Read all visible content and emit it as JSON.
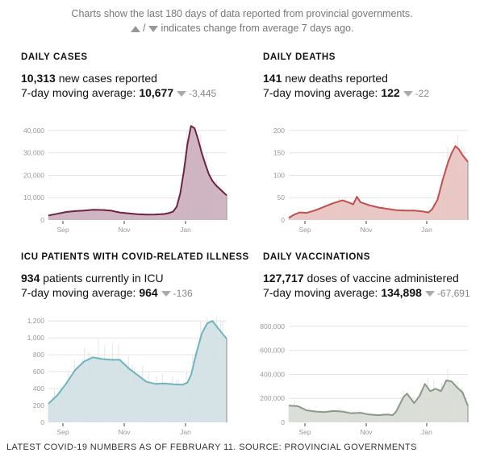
{
  "intro": {
    "line1": "Charts show the last 180 days of data reported from provincial governments.",
    "line2_sep": "/",
    "line2_text": "indicates change from average 7 days ago."
  },
  "footer": "LATEST COVID-19 NUMBERS AS OF FEBRUARY 11. SOURCE: PROVINCIAL GOVERNMENTS",
  "panels": [
    {
      "title": "DAILY CASES",
      "value": "10,313",
      "value_text": "new cases reported",
      "avg_label": "7-day moving average:",
      "avg_value": "10,677",
      "change_direction": "down",
      "change": "-3,445",
      "color_line": "#6e2341",
      "color_fill": "#c9aab8"
    },
    {
      "title": "DAILY DEATHS",
      "value": "141",
      "value_text": "new deaths reported",
      "avg_label": "7-day moving average:",
      "avg_value": "122",
      "change_direction": "down",
      "change": "-22",
      "color_line": "#c0504d",
      "color_fill": "#e6c0bd"
    },
    {
      "title": "ICU PATIENTS WITH COVID-RELATED ILLNESS",
      "value": "934",
      "value_text": "patients currently in ICU",
      "avg_label": "7-day moving average:",
      "avg_value": "964",
      "change_direction": "down",
      "change": "-136",
      "color_line": "#6fb3bf",
      "color_fill": "#cfdfe3"
    },
    {
      "title": "DAILY VACCINATIONS",
      "value": "127,717",
      "value_text": "doses of vaccine administered",
      "avg_label": "7-day moving average:",
      "avg_value": "134,898",
      "change_direction": "down",
      "change": "-67,691",
      "color_line": "#8a9a86",
      "color_fill": "#d6d9d2"
    }
  ],
  "chart_data": [
    {
      "type": "area",
      "title": "DAILY CASES",
      "xlabel": "",
      "ylabel": "",
      "x_ticks": [
        "Sep",
        "Nov",
        "Jan"
      ],
      "y_ticks": [
        0,
        10000,
        20000,
        30000,
        40000
      ],
      "y_tick_labels": [
        "0",
        "10,000",
        "20,000",
        "30,000",
        "40,000"
      ],
      "ylim": [
        0,
        45000
      ],
      "grid": true,
      "series": [
        {
          "name": "7-day moving average",
          "x_frac": [
            0,
            0.05,
            0.1,
            0.15,
            0.2,
            0.25,
            0.3,
            0.35,
            0.4,
            0.45,
            0.5,
            0.55,
            0.6,
            0.65,
            0.68,
            0.7,
            0.72,
            0.74,
            0.76,
            0.78,
            0.8,
            0.82,
            0.84,
            0.86,
            0.88,
            0.9,
            0.92,
            0.94,
            0.96,
            0.98,
            1.0
          ],
          "values": [
            2000,
            2800,
            3600,
            4000,
            4200,
            4600,
            4500,
            4200,
            3400,
            3000,
            2600,
            2400,
            2500,
            2700,
            3200,
            3800,
            6000,
            12000,
            22000,
            34000,
            42000,
            41000,
            36000,
            30000,
            25000,
            20500,
            17500,
            15500,
            14000,
            12500,
            11000
          ]
        }
      ]
    },
    {
      "type": "area",
      "title": "DAILY DEATHS",
      "xlabel": "",
      "ylabel": "",
      "x_ticks": [
        "Sep",
        "Nov",
        "Jan"
      ],
      "y_ticks": [
        0,
        50,
        100,
        150,
        200
      ],
      "y_tick_labels": [
        "0",
        "50",
        "100",
        "150",
        "200"
      ],
      "ylim": [
        0,
        225
      ],
      "grid": true,
      "series": [
        {
          "name": "7-day moving average",
          "x_frac": [
            0,
            0.03,
            0.06,
            0.1,
            0.15,
            0.2,
            0.25,
            0.3,
            0.33,
            0.36,
            0.38,
            0.4,
            0.45,
            0.5,
            0.55,
            0.6,
            0.65,
            0.7,
            0.75,
            0.78,
            0.8,
            0.83,
            0.86,
            0.89,
            0.91,
            0.93,
            0.95,
            0.97,
            1.0
          ],
          "values": [
            5,
            12,
            17,
            16,
            22,
            30,
            38,
            44,
            40,
            35,
            52,
            40,
            33,
            28,
            25,
            22,
            21,
            21,
            19,
            17,
            24,
            45,
            90,
            130,
            150,
            165,
            158,
            145,
            130
          ]
        }
      ]
    },
    {
      "type": "area",
      "title": "ICU PATIENTS WITH COVID-RELATED ILLNESS",
      "xlabel": "",
      "ylabel": "",
      "x_ticks": [
        "Sep",
        "Nov",
        "Jan"
      ],
      "y_ticks": [
        0,
        200,
        400,
        600,
        800,
        1000,
        1200
      ],
      "y_tick_labels": [
        "0",
        "200",
        "400",
        "600",
        "800",
        "1,000",
        "1,200"
      ],
      "ylim": [
        0,
        1250
      ],
      "grid": true,
      "series": [
        {
          "name": "7-day moving average",
          "x_frac": [
            0,
            0.05,
            0.1,
            0.15,
            0.2,
            0.25,
            0.3,
            0.35,
            0.4,
            0.45,
            0.5,
            0.55,
            0.6,
            0.65,
            0.7,
            0.75,
            0.78,
            0.8,
            0.83,
            0.86,
            0.89,
            0.92,
            0.95,
            0.98,
            1.0
          ],
          "values": [
            220,
            320,
            460,
            620,
            720,
            770,
            750,
            740,
            740,
            640,
            560,
            480,
            455,
            460,
            450,
            445,
            470,
            560,
            820,
            1050,
            1170,
            1200,
            1120,
            1040,
            990
          ]
        }
      ]
    },
    {
      "type": "area",
      "title": "DAILY VACCINATIONS",
      "xlabel": "",
      "ylabel": "",
      "x_ticks": [
        "Sep",
        "Nov",
        "Jan"
      ],
      "y_ticks": [
        0,
        200000,
        400000,
        600000,
        800000
      ],
      "y_tick_labels": [
        "0",
        "200,000",
        "400,000",
        "600,000",
        "800,000"
      ],
      "ylim": [
        0,
        880000
      ],
      "grid": true,
      "series": [
        {
          "name": "7-day moving average",
          "x_frac": [
            0,
            0.05,
            0.1,
            0.15,
            0.2,
            0.25,
            0.3,
            0.35,
            0.4,
            0.45,
            0.5,
            0.55,
            0.58,
            0.6,
            0.64,
            0.66,
            0.7,
            0.73,
            0.76,
            0.79,
            0.82,
            0.85,
            0.88,
            0.91,
            0.94,
            0.97,
            1.0
          ],
          "values": [
            140000,
            135000,
            100000,
            90000,
            85000,
            95000,
            90000,
            75000,
            80000,
            65000,
            60000,
            65000,
            60000,
            90000,
            210000,
            240000,
            160000,
            220000,
            320000,
            260000,
            280000,
            260000,
            350000,
            340000,
            290000,
            250000,
            140000
          ]
        }
      ]
    }
  ]
}
